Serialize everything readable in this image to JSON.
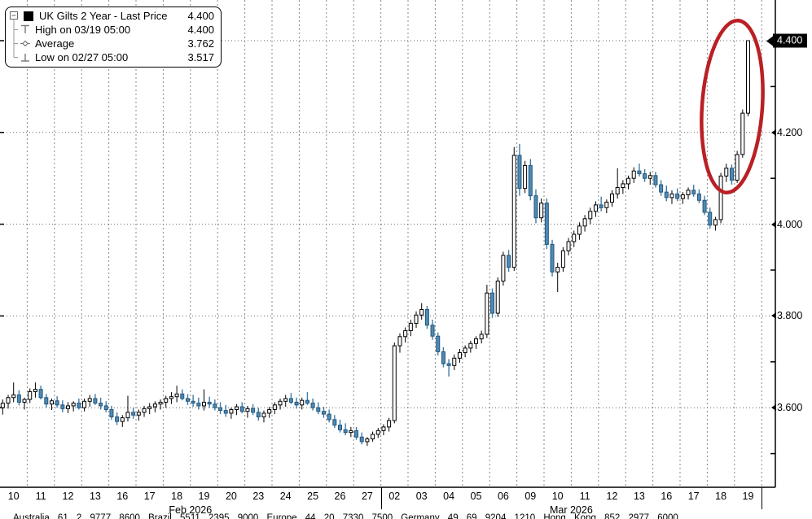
{
  "chart_data": {
    "type": "candlestick",
    "title": "UK Gilts 2 Year - Last Price",
    "last_price": "4.400",
    "ylim": [
      3.43,
      4.49
    ],
    "y_gridlines": [
      4.4,
      4.2,
      4.0,
      3.8,
      3.6
    ],
    "y_axis_labeled": [
      4.2,
      4.0,
      3.8,
      3.6
    ],
    "y_minor_ticks": [
      4.3,
      4.1,
      3.9,
      3.7,
      3.5
    ],
    "grid": "on",
    "days": [
      "10",
      "11",
      "12",
      "13",
      "16",
      "17",
      "18",
      "19",
      "20",
      "23",
      "24",
      "25",
      "26",
      "27",
      "02",
      "03",
      "04",
      "05",
      "06",
      "09",
      "10",
      "11",
      "12",
      "13",
      "16",
      "17",
      "18",
      "19"
    ],
    "months": [
      {
        "label": "Feb 2026",
        "first_day_index": 0,
        "last_day_index": 13
      },
      {
        "label": "Mar 2026",
        "first_day_index": 14,
        "last_day_index": 27
      }
    ],
    "ohlc_by_day": [
      [
        [
          3.6,
          3.618,
          3.585,
          3.61
        ],
        [
          3.61,
          3.628,
          3.598,
          3.622
        ],
        [
          3.622,
          3.655,
          3.612,
          3.628
        ],
        [
          3.628,
          3.638,
          3.605,
          3.612
        ],
        [
          3.612,
          3.622,
          3.596,
          3.618
        ]
      ],
      [
        [
          3.618,
          3.642,
          3.61,
          3.635
        ],
        [
          3.635,
          3.655,
          3.622,
          3.64
        ],
        [
          3.64,
          3.648,
          3.618,
          3.622
        ],
        [
          3.622,
          3.63,
          3.6,
          3.608
        ],
        [
          3.608,
          3.62,
          3.595,
          3.615
        ]
      ],
      [
        [
          3.615,
          3.625,
          3.6,
          3.606
        ],
        [
          3.606,
          3.616,
          3.59,
          3.598
        ],
        [
          3.598,
          3.612,
          3.588,
          3.604
        ],
        [
          3.604,
          3.614,
          3.592,
          3.61
        ],
        [
          3.61,
          3.62,
          3.596,
          3.6
        ]
      ],
      [
        [
          3.6,
          3.62,
          3.592,
          3.614
        ],
        [
          3.614,
          3.628,
          3.602,
          3.62
        ],
        [
          3.62,
          3.63,
          3.606,
          3.61
        ],
        [
          3.61,
          3.622,
          3.596,
          3.604
        ],
        [
          3.604,
          3.614,
          3.59,
          3.596
        ]
      ],
      [
        [
          3.596,
          3.604,
          3.574,
          3.58
        ],
        [
          3.58,
          3.59,
          3.562,
          3.57
        ],
        [
          3.57,
          3.584,
          3.558,
          3.578
        ],
        [
          3.578,
          3.626,
          3.57,
          3.59
        ],
        [
          3.59,
          3.6,
          3.576,
          3.584
        ]
      ],
      [
        [
          3.584,
          3.596,
          3.572,
          3.59
        ],
        [
          3.59,
          3.604,
          3.58,
          3.598
        ],
        [
          3.598,
          3.61,
          3.586,
          3.602
        ],
        [
          3.602,
          3.614,
          3.59,
          3.608
        ],
        [
          3.608,
          3.618,
          3.596,
          3.612
        ]
      ],
      [
        [
          3.612,
          3.626,
          3.6,
          3.62
        ],
        [
          3.62,
          3.634,
          3.608,
          3.624
        ],
        [
          3.624,
          3.648,
          3.612,
          3.63
        ],
        [
          3.63,
          3.64,
          3.616,
          3.62
        ],
        [
          3.62,
          3.63,
          3.606,
          3.614
        ]
      ],
      [
        [
          3.614,
          3.628,
          3.602,
          3.61
        ],
        [
          3.61,
          3.622,
          3.596,
          3.604
        ],
        [
          3.604,
          3.64,
          3.594,
          3.612
        ],
        [
          3.612,
          3.624,
          3.6,
          3.608
        ],
        [
          3.608,
          3.618,
          3.594,
          3.6
        ]
      ],
      [
        [
          3.6,
          3.612,
          3.586,
          3.594
        ],
        [
          3.594,
          3.606,
          3.58,
          3.588
        ],
        [
          3.588,
          3.6,
          3.576,
          3.596
        ],
        [
          3.596,
          3.608,
          3.584,
          3.602
        ],
        [
          3.602,
          3.612,
          3.588,
          3.592
        ]
      ],
      [
        [
          3.592,
          3.604,
          3.578,
          3.598
        ],
        [
          3.598,
          3.608,
          3.584,
          3.59
        ],
        [
          3.59,
          3.6,
          3.572,
          3.58
        ],
        [
          3.58,
          3.594,
          3.568,
          3.588
        ],
        [
          3.588,
          3.602,
          3.578,
          3.596
        ]
      ],
      [
        [
          3.596,
          3.612,
          3.586,
          3.606
        ],
        [
          3.606,
          3.62,
          3.596,
          3.614
        ],
        [
          3.614,
          3.628,
          3.602,
          3.62
        ],
        [
          3.62,
          3.632,
          3.608,
          3.612
        ],
        [
          3.612,
          3.622,
          3.598,
          3.606
        ]
      ],
      [
        [
          3.606,
          3.622,
          3.596,
          3.616
        ],
        [
          3.616,
          3.634,
          3.606,
          3.61
        ],
        [
          3.61,
          3.62,
          3.594,
          3.6
        ],
        [
          3.6,
          3.612,
          3.586,
          3.592
        ],
        [
          3.592,
          3.602,
          3.578,
          3.586
        ]
      ],
      [
        [
          3.586,
          3.596,
          3.568,
          3.574
        ],
        [
          3.574,
          3.584,
          3.556,
          3.562
        ],
        [
          3.562,
          3.574,
          3.546,
          3.552
        ],
        [
          3.552,
          3.566,
          3.54,
          3.546
        ],
        [
          3.546,
          3.558,
          3.536,
          3.55
        ]
      ],
      [
        [
          3.55,
          3.558,
          3.53,
          3.536
        ],
        [
          3.536,
          3.546,
          3.52,
          3.526
        ],
        [
          3.526,
          3.536,
          3.517,
          3.532
        ],
        [
          3.532,
          3.548,
          3.526,
          3.542
        ],
        [
          3.542,
          3.556,
          3.534,
          3.55
        ]
      ],
      [
        [
          3.55,
          3.564,
          3.54,
          3.558
        ],
        [
          3.558,
          3.578,
          3.548,
          3.572
        ],
        [
          3.572,
          3.742,
          3.566,
          3.735
        ],
        [
          3.735,
          3.762,
          3.72,
          3.755
        ],
        [
          3.755,
          3.775,
          3.742,
          3.768
        ]
      ],
      [
        [
          3.768,
          3.792,
          3.756,
          3.784
        ],
        [
          3.784,
          3.81,
          3.774,
          3.802
        ],
        [
          3.802,
          3.828,
          3.792,
          3.814
        ],
        [
          3.814,
          3.822,
          3.772,
          3.78
        ],
        [
          3.78,
          3.792,
          3.748,
          3.756
        ]
      ],
      [
        [
          3.756,
          3.764,
          3.714,
          3.722
        ],
        [
          3.722,
          3.732,
          3.688,
          3.696
        ],
        [
          3.696,
          3.706,
          3.668,
          3.692
        ],
        [
          3.692,
          3.716,
          3.682,
          3.708
        ],
        [
          3.708,
          3.728,
          3.698,
          3.72
        ]
      ],
      [
        [
          3.72,
          3.736,
          3.71,
          3.73
        ],
        [
          3.73,
          3.746,
          3.72,
          3.74
        ],
        [
          3.74,
          3.756,
          3.728,
          3.75
        ],
        [
          3.75,
          3.768,
          3.74,
          3.76
        ],
        [
          3.76,
          3.868,
          3.752,
          3.85
        ]
      ],
      [
        [
          3.85,
          3.86,
          3.796,
          3.806
        ],
        [
          3.806,
          3.884,
          3.798,
          3.876
        ],
        [
          3.876,
          3.94,
          3.866,
          3.932
        ],
        [
          3.932,
          3.944,
          3.896,
          3.906
        ],
        [
          3.906,
          4.168,
          3.898,
          4.15
        ]
      ],
      [
        [
          4.15,
          4.175,
          4.062,
          4.078
        ],
        [
          4.078,
          4.138,
          4.068,
          4.128
        ],
        [
          4.128,
          4.142,
          4.052,
          4.062
        ],
        [
          4.062,
          4.076,
          4.002,
          4.014
        ],
        [
          4.014,
          4.056,
          4.004,
          4.046
        ]
      ],
      [
        [
          4.046,
          4.056,
          3.946,
          3.956
        ],
        [
          3.956,
          3.966,
          3.886,
          3.896
        ],
        [
          3.896,
          3.916,
          3.852,
          3.906
        ],
        [
          3.906,
          3.95,
          3.896,
          3.942
        ],
        [
          3.942,
          3.97,
          3.932,
          3.962
        ]
      ],
      [
        [
          3.962,
          3.986,
          3.95,
          3.978
        ],
        [
          3.978,
          4.004,
          3.966,
          3.996
        ],
        [
          3.996,
          4.02,
          3.984,
          4.012
        ],
        [
          4.012,
          4.036,
          4.0,
          4.028
        ],
        [
          4.028,
          4.05,
          4.016,
          4.042
        ]
      ],
      [
        [
          4.042,
          4.06,
          4.028,
          4.036
        ],
        [
          4.036,
          4.054,
          4.024,
          4.048
        ],
        [
          4.048,
          4.074,
          4.038,
          4.066
        ],
        [
          4.066,
          4.122,
          4.056,
          4.08
        ],
        [
          4.08,
          4.096,
          4.066,
          4.088
        ]
      ],
      [
        [
          4.088,
          4.106,
          4.076,
          4.1
        ],
        [
          4.1,
          4.124,
          4.09,
          4.116
        ],
        [
          4.116,
          4.132,
          4.104,
          4.11
        ],
        [
          4.11,
          4.12,
          4.092,
          4.1
        ],
        [
          4.1,
          4.114,
          4.086,
          4.106
        ]
      ],
      [
        [
          4.106,
          4.114,
          4.08,
          4.086
        ],
        [
          4.086,
          4.096,
          4.062,
          4.07
        ],
        [
          4.07,
          4.084,
          4.05,
          4.058
        ],
        [
          4.058,
          4.074,
          4.044,
          4.066
        ],
        [
          4.066,
          4.078,
          4.05,
          4.056
        ]
      ],
      [
        [
          4.056,
          4.07,
          4.044,
          4.064
        ],
        [
          4.064,
          4.08,
          4.054,
          4.074
        ],
        [
          4.074,
          4.086,
          4.06,
          4.066
        ],
        [
          4.066,
          4.076,
          4.046,
          4.052
        ],
        [
          4.052,
          4.062,
          4.02,
          4.026
        ]
      ],
      [
        [
          4.026,
          4.036,
          3.99,
          3.998
        ],
        [
          3.998,
          4.016,
          3.986,
          4.01
        ],
        [
          4.01,
          4.112,
          4.002,
          4.105
        ],
        [
          4.105,
          4.132,
          4.092,
          4.122
        ],
        [
          4.122,
          4.13,
          4.086,
          4.096
        ]
      ],
      [
        [
          4.096,
          4.16,
          4.09,
          4.152
        ],
        [
          4.152,
          4.25,
          4.145,
          4.242
        ],
        [
          4.242,
          4.4,
          4.235,
          4.4
        ]
      ]
    ]
  },
  "legend": {
    "rows": [
      {
        "icon": "series-swatch",
        "label": "UK Gilts 2 Year - Last Price",
        "value": "4.400"
      },
      {
        "icon": "high-marker",
        "label": "High on 03/19 05:00",
        "value": "4.400"
      },
      {
        "icon": "average-marker",
        "label": "Average",
        "value": "3.762"
      },
      {
        "icon": "low-marker",
        "label": "Low on 02/27 05:00",
        "value": "3.517"
      }
    ]
  },
  "y_axis_labels": [
    "4.200",
    "4.000",
    "3.800",
    "3.600"
  ],
  "last_price_label": "4.400",
  "annotation": {
    "shape": "ellipse",
    "meaning": "highlight-final-price-spike",
    "color": "#b92025"
  },
  "footer": "Australia 61 2 9777 8600 Brazil 5511 2395 9000 Europe 44 20 7330 7500 Germany 49 69 9204 1210 Hong Kong 852 2977 6000",
  "colors": {
    "up_fill": "#ffffff",
    "up_stroke": "#000000",
    "down_fill": "#4e8bb4",
    "down_stroke": "#24567c",
    "down_wick": "#3f7ca8",
    "grid_h": "#666666",
    "grid_v": "#888888",
    "axis": "#000000",
    "annotation": "#b92025",
    "last_label_bg": "#000000",
    "last_label_fg": "#ffffff"
  }
}
